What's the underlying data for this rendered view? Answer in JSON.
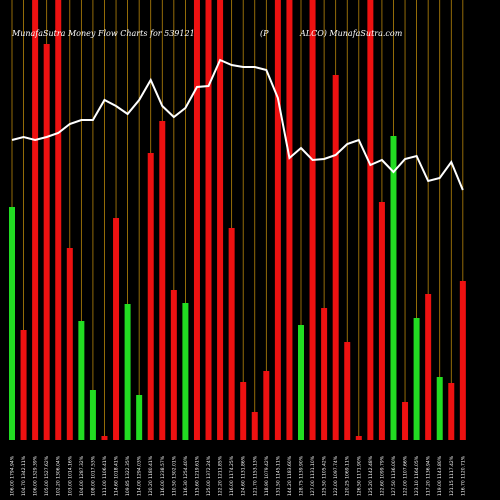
{
  "chart_data": {
    "type": "bar",
    "title_left": "MunafaSutra  Money Flow  Charts for 539121",
    "title_mid": "(P",
    "title_right": "ALCO) MunafaSutra.com",
    "categories": [
      "106.00 1794.94%",
      "104.70 1342.11%",
      "106.00 1329.39%",
      "105.00 1527.62%",
      "102.20 1306.04%",
      "103.00 1014.16%",
      "104.00 1287.32%",
      "108.00 1017.53%",
      "111.00 1106.41%",
      "114.60 1018.41%",
      "109.85 1322.35%",
      "114.00 1294.03%",
      "120.20 1180.41%",
      "116.00 1238.57%",
      "110.50 1302.01%",
      "116.30 1254.40%",
      "115.60 1219.61%",
      "125.00 1372.24%",
      "122.20 1211.85%",
      "116.00 1174.25%",
      "124.60 1131.86%",
      "121.70 1153.13%",
      "118.90 1079.42%",
      "131.50 1145.11%",
      "144.20 1183.60%",
      "128.75 1139.90%",
      "127.00 1131.10%",
      "125.50 1105.42%",
      "122.00 1097.74%",
      "120.25 1069.11%",
      "126.50 1171.90%",
      "125.20 1142.48%",
      "122.60 1099.79%",
      "127.50 1136.00%",
      "122.00 1107.66%",
      "123.10 1164.05%",
      "117.20 1136.94%",
      "119.00 1143.80%",
      "121.15 1117.42%",
      "116.70 1120.71%"
    ],
    "values": [
      233,
      110,
      440,
      396,
      440,
      192,
      119,
      50,
      4,
      222,
      136,
      45,
      287,
      319,
      150,
      137,
      440,
      440,
      440,
      212,
      58,
      28,
      69,
      440,
      440,
      115,
      440,
      132,
      365,
      98,
      4,
      440,
      238,
      304,
      38,
      122,
      146,
      63,
      57,
      159
    ],
    "colors": [
      "#22dd22",
      "#ee1111",
      "#ee1111",
      "#ee1111",
      "#ee1111",
      "#ee1111",
      "#22dd22",
      "#22dd22",
      "#ee1111",
      "#ee1111",
      "#22dd22",
      "#22dd22",
      "#ee1111",
      "#ee1111",
      "#ee1111",
      "#22dd22",
      "#ee1111",
      "#ee1111",
      "#ee1111",
      "#ee1111",
      "#ee1111",
      "#ee1111",
      "#ee1111",
      "#ee1111",
      "#ee1111",
      "#22dd22",
      "#ee1111",
      "#ee1111",
      "#ee1111",
      "#ee1111",
      "#ee1111",
      "#ee1111",
      "#ee1111",
      "#22dd22",
      "#ee1111",
      "#22dd22",
      "#ee1111",
      "#22dd22",
      "#ee1111",
      "#ee1111"
    ],
    "line_values": [
      300,
      303,
      300,
      303,
      307,
      316,
      320,
      320,
      340,
      334,
      326,
      340,
      360,
      334,
      323,
      332,
      353,
      354,
      380,
      375,
      373,
      373,
      370,
      342,
      282,
      292,
      280,
      281,
      285,
      296,
      300,
      275,
      280,
      268,
      281,
      284,
      259,
      262,
      278,
      250
    ],
    "line_color": "#ffffff",
    "grid_color": "#b8860b",
    "ylim": [
      0,
      440
    ]
  }
}
